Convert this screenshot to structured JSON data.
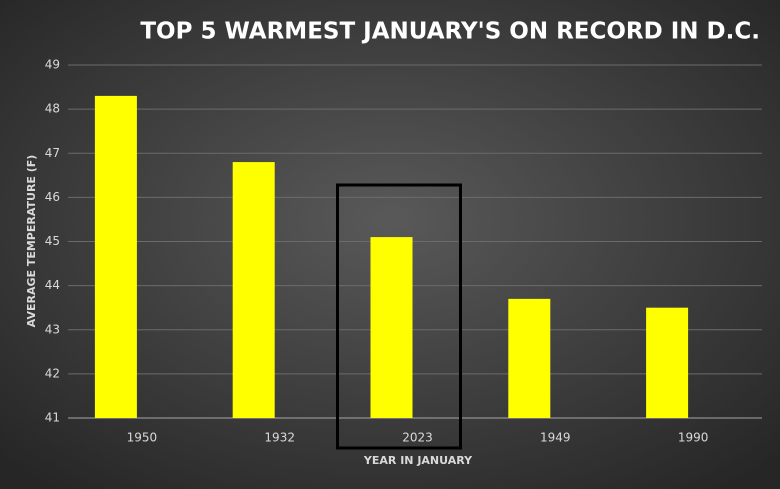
{
  "chart_data": {
    "type": "bar",
    "title": "TOP 5 WARMEST JANUARY'S ON RECORD IN D.C.",
    "x_label": "YEAR IN JANUARY",
    "y_label": "AVERAGE TEMPERATURE (F)",
    "categories": [
      "1950",
      "1932",
      "2023",
      "1949",
      "1990"
    ],
    "values": [
      48.3,
      46.8,
      45.1,
      43.7,
      43.5
    ],
    "color": "#ffff00",
    "ylim": [
      41,
      49
    ],
    "yticks": [
      41,
      42,
      43,
      44,
      45,
      46,
      47,
      48,
      49
    ],
    "grid": true
  }
}
